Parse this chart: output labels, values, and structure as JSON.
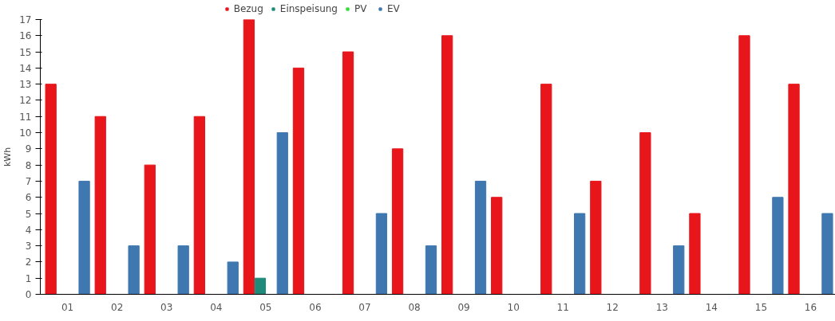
{
  "chart_data": {
    "type": "bar",
    "ylabel": "kWh",
    "categories": [
      "01",
      "02",
      "03",
      "04",
      "05",
      "06",
      "07",
      "08",
      "09",
      "10",
      "11",
      "12",
      "13",
      "14",
      "15",
      "16"
    ],
    "series": [
      {
        "name": "Bezug",
        "color": "#e8161b",
        "values": [
          13,
          11,
          8,
          11,
          17,
          14,
          15,
          9,
          16,
          6,
          13,
          7,
          10,
          5,
          16,
          13
        ]
      },
      {
        "name": "Einspeisung",
        "color": "#1e8a7a",
        "values": [
          0,
          0,
          0,
          0,
          1,
          0,
          0,
          0,
          0,
          0,
          0,
          0,
          0,
          0,
          0,
          0
        ]
      },
      {
        "name": "PV",
        "color": "#33dd33",
        "values": [
          0,
          0,
          0,
          0,
          0,
          0,
          0,
          0,
          0,
          0,
          0,
          0,
          0,
          0,
          0,
          0
        ]
      },
      {
        "name": "EV",
        "color": "#3f78b0",
        "values": [
          7,
          3,
          3,
          2,
          10,
          null,
          5,
          3,
          7,
          0,
          5,
          0,
          3,
          0,
          6,
          5
        ]
      }
    ],
    "ylim": [
      0,
      17
    ],
    "yticks": [
      0,
      1,
      2,
      3,
      4,
      5,
      6,
      7,
      8,
      9,
      10,
      11,
      12,
      13,
      14,
      15,
      16,
      17
    ],
    "grid": false,
    "legend": "top"
  }
}
